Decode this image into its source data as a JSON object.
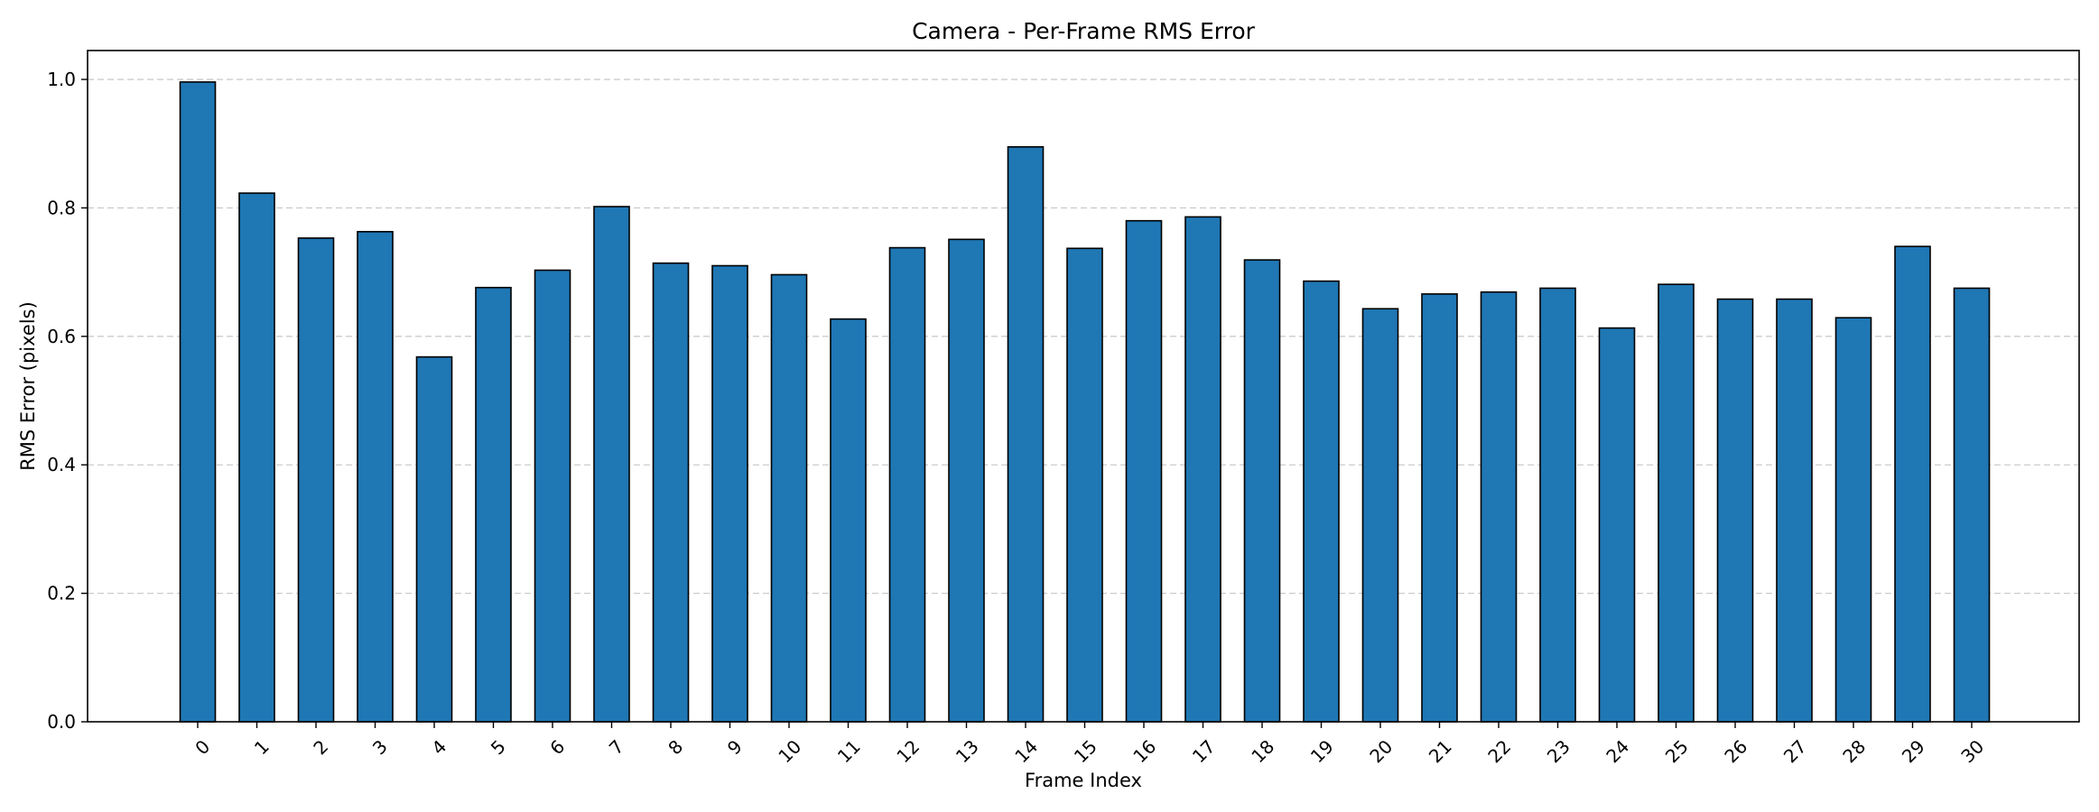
{
  "chart_data": {
    "type": "bar",
    "title": "Camera - Per-Frame RMS Error",
    "xlabel": "Frame Index",
    "ylabel": "RMS Error (pixels)",
    "categories": [
      "0",
      "1",
      "2",
      "3",
      "4",
      "5",
      "6",
      "7",
      "8",
      "9",
      "10",
      "11",
      "12",
      "13",
      "14",
      "15",
      "16",
      "17",
      "18",
      "19",
      "20",
      "21",
      "22",
      "23",
      "24",
      "25",
      "26",
      "27",
      "28",
      "29",
      "30"
    ],
    "values": [
      0.996,
      0.823,
      0.753,
      0.763,
      0.568,
      0.676,
      0.703,
      0.802,
      0.714,
      0.71,
      0.696,
      0.627,
      0.738,
      0.751,
      0.895,
      0.737,
      0.78,
      0.786,
      0.719,
      0.686,
      0.643,
      0.666,
      0.669,
      0.675,
      0.613,
      0.681,
      0.658,
      0.658,
      0.629,
      0.74,
      0.675
    ],
    "ylim": [
      0,
      1.045
    ],
    "yticks": [
      "0.0",
      "0.2",
      "0.4",
      "0.6",
      "0.8",
      "1.0"
    ],
    "grid": "y-dashed",
    "bar_color": "#1f77b4",
    "edge_color": "#000000",
    "grid_color": "#cccccc"
  }
}
